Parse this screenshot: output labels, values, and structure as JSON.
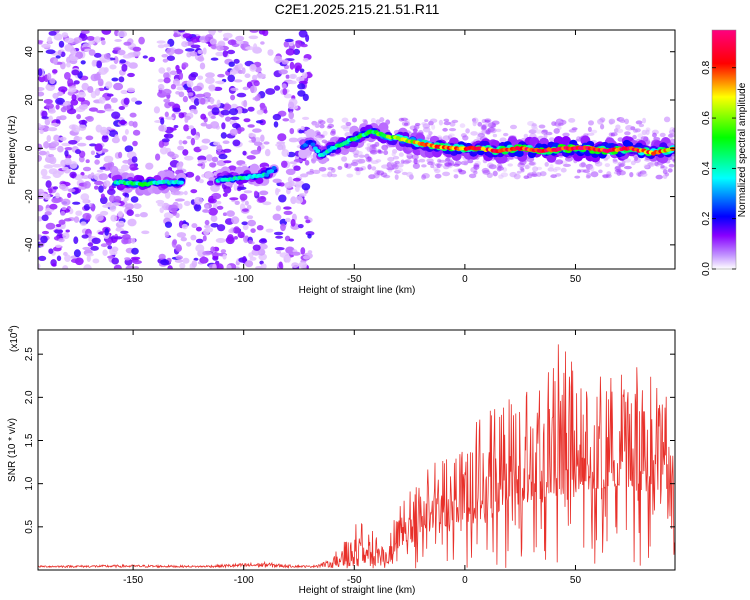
{
  "title": "C2E1.2025.215.21.51.R11",
  "chart_data": [
    {
      "type": "heatmap",
      "xlabel": "Height of straight line (km)",
      "ylabel": "Frequency (Hz)",
      "xlim": [
        -193,
        95
      ],
      "ylim": [
        -50,
        49
      ],
      "xticks": [
        -150,
        -100,
        -50,
        0,
        50
      ],
      "xtick_labels": [
        "-150",
        "-100",
        "-50",
        "0",
        "50"
      ],
      "yticks": [
        -40,
        -20,
        0,
        20,
        40
      ],
      "ytick_labels": [
        "-40",
        "-20",
        "0",
        "20",
        "40"
      ],
      "colorbar": {
        "label": "Normalized spectral amplitude",
        "range": [
          0,
          0.95
        ],
        "ticks": [
          0,
          0.2,
          0.4,
          0.6,
          0.8
        ],
        "tick_labels": [
          "0.0",
          "0.2",
          "0.4",
          "0.6",
          "0.8"
        ],
        "colormap": [
          "#ffffff",
          "#8800ff",
          "#0000ff",
          "#00ffff",
          "#00ff00",
          "#ffff00",
          "#ff0000",
          "#ff0080"
        ]
      },
      "noise_region": {
        "x": [
          -193,
          -70
        ],
        "y": [
          -50,
          49
        ],
        "gaps": [
          [
            -148,
            -138
          ],
          [
            -90,
            -85
          ]
        ]
      },
      "weak_region": {
        "x": [
          -70,
          95
        ],
        "y": [
          -12,
          12
        ]
      },
      "ridge": [
        {
          "x": -155,
          "y": -14,
          "amp": 0.45
        },
        {
          "x": -145,
          "y": -15,
          "amp": 0.5
        },
        {
          "x": -138,
          "y": -14,
          "amp": 0.4
        },
        {
          "x": -130,
          "y": -14,
          "amp": 0.45
        },
        {
          "x": -108,
          "y": -13,
          "amp": 0.4
        },
        {
          "x": -98,
          "y": -12,
          "amp": 0.45
        },
        {
          "x": -90,
          "y": -11,
          "amp": 0.4
        },
        {
          "x": -70,
          "y": 3,
          "amp": 0.3
        },
        {
          "x": -65,
          "y": -3,
          "amp": 0.4
        },
        {
          "x": -60,
          "y": 0,
          "amp": 0.45
        },
        {
          "x": -50,
          "y": 4,
          "amp": 0.5
        },
        {
          "x": -42,
          "y": 7,
          "amp": 0.5
        },
        {
          "x": -35,
          "y": 5,
          "amp": 0.6
        },
        {
          "x": -25,
          "y": 3,
          "amp": 0.65
        },
        {
          "x": -15,
          "y": 1,
          "amp": 0.75
        },
        {
          "x": -5,
          "y": 0,
          "amp": 0.8
        },
        {
          "x": 5,
          "y": 0,
          "amp": 0.8
        },
        {
          "x": 15,
          "y": -1,
          "amp": 0.8
        },
        {
          "x": 25,
          "y": 0,
          "amp": 0.85
        },
        {
          "x": 35,
          "y": -1,
          "amp": 0.85
        },
        {
          "x": 45,
          "y": 0,
          "amp": 0.85
        },
        {
          "x": 55,
          "y": 0,
          "amp": 0.9
        },
        {
          "x": 65,
          "y": -1,
          "amp": 0.85
        },
        {
          "x": 75,
          "y": 0,
          "amp": 0.8
        },
        {
          "x": 85,
          "y": -2,
          "amp": 0.75
        },
        {
          "x": 95,
          "y": 0,
          "amp": 0.7
        }
      ]
    },
    {
      "type": "line",
      "xlabel": "Height of straight line (km)",
      "ylabel": "SNR (10 * v/v)",
      "scale_label": "(x10",
      "scale_exp": "4",
      "scale_close": ")",
      "xlim": [
        -193,
        95
      ],
      "ylim": [
        0,
        2.78
      ],
      "xticks": [
        -150,
        -100,
        -50,
        0,
        50
      ],
      "xtick_labels": [
        "-150",
        "-100",
        "-50",
        "0",
        "50"
      ],
      "yticks": [
        0.5,
        1.0,
        1.5,
        2.0,
        2.5
      ],
      "ytick_labels": [
        "0.5",
        "1.0",
        "1.5",
        "2.0",
        "2.5"
      ],
      "series": [
        {
          "color": "#e8302a",
          "envelope": {
            "x": [
              -193,
              -150,
              -120,
              -90,
              -80,
              -70,
              -60,
              -55,
              -50,
              -45,
              -40,
              -35,
              -30,
              -25,
              -20,
              -10,
              0,
              10,
              20,
              30,
              40,
              50,
              60,
              70,
              80,
              95
            ],
            "baseline": [
              0.03,
              0.03,
              0.03,
              0.03,
              0.03,
              0.03,
              0.03,
              0.05,
              0.12,
              0.1,
              0.05,
              0.05,
              0.25,
              0.35,
              0.4,
              0.5,
              0.55,
              0.6,
              0.7,
              0.8,
              0.85,
              0.9,
              0.95,
              0.95,
              0.9,
              0.9
            ],
            "peak": [
              0.05,
              0.06,
              0.05,
              0.09,
              0.06,
              0.05,
              0.12,
              0.3,
              0.55,
              0.5,
              0.55,
              0.3,
              0.75,
              0.95,
              1.1,
              1.35,
              1.6,
              1.75,
              2.0,
              2.2,
              2.65,
              2.3,
              2.2,
              2.3,
              2.35,
              1.9
            ]
          }
        }
      ]
    }
  ]
}
